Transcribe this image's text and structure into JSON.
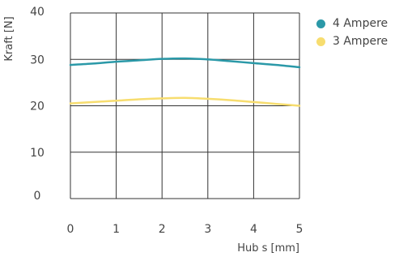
{
  "chart_data": {
    "type": "line",
    "xlabel": "Hub s [mm]",
    "ylabel": "Kraft [N]",
    "xlim": [
      0,
      5
    ],
    "ylim": [
      0,
      40
    ],
    "x_ticks": [
      "0",
      "1",
      "2",
      "3",
      "4",
      "5"
    ],
    "y_ticks": [
      "0",
      "10",
      "20",
      "30",
      "40"
    ],
    "grid": true,
    "legend_position": "top-right",
    "x": [
      0,
      0.5,
      1,
      1.5,
      2,
      2.5,
      3,
      3.5,
      4,
      4.5,
      5
    ],
    "series": [
      {
        "name": "4 Ampere",
        "color": "#2b99a8",
        "values": [
          28.8,
          29.1,
          29.5,
          29.8,
          30.1,
          30.2,
          30.0,
          29.6,
          29.2,
          28.8,
          28.3
        ]
      },
      {
        "name": "3 Ampere",
        "color": "#f7dd6f",
        "values": [
          20.5,
          20.8,
          21.1,
          21.4,
          21.6,
          21.7,
          21.5,
          21.2,
          20.8,
          20.4,
          20.0
        ]
      }
    ]
  }
}
